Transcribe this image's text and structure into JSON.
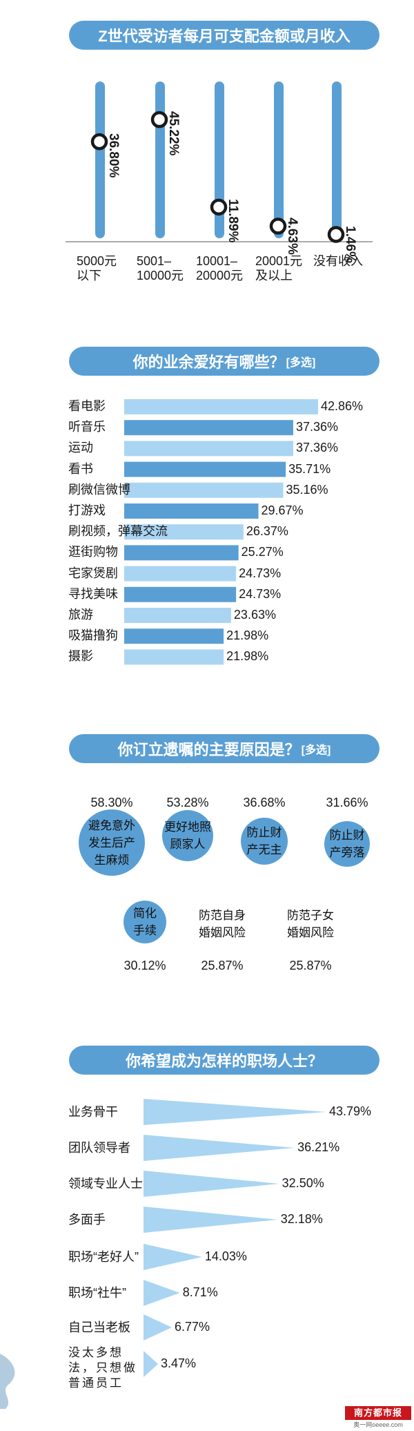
{
  "chart_data": [
    {
      "type": "bar",
      "title": "Z世代受访者每月可支配金额或月收入",
      "categories": [
        [
          "5000元",
          "以下"
        ],
        [
          "5001–",
          "10000元"
        ],
        [
          "10001–",
          "20000元"
        ],
        [
          "20001元",
          "及以上"
        ],
        [
          "没有收入"
        ]
      ],
      "values": [
        36.8,
        45.22,
        11.89,
        4.63,
        1.46
      ],
      "value_labels": [
        "36.80%",
        "45.22%",
        "11.89%",
        "4.63%",
        "1.46%"
      ],
      "ylim": [
        0,
        50
      ]
    },
    {
      "type": "bar",
      "title": "你的业余爱好有哪些？",
      "title_tag": "[多选]",
      "categories": [
        "看电影",
        "听音乐",
        "运动",
        "看书",
        "刷微信微博",
        "打游戏",
        "刷视频，弹幕交流",
        "逛街购物",
        "宅家煲剧",
        "寻找美味",
        "旅游",
        "吸猫撸狗",
        "摄影"
      ],
      "values": [
        42.86,
        37.36,
        37.36,
        35.71,
        35.16,
        29.67,
        26.37,
        25.27,
        24.73,
        24.73,
        23.63,
        21.98,
        21.98
      ],
      "value_labels": [
        "42.86%",
        "37.36%",
        "37.36%",
        "35.71%",
        "35.16%",
        "29.67%",
        "26.37%",
        "25.27%",
        "24.73%",
        "24.73%",
        "23.63%",
        "21.98%",
        "21.98%"
      ]
    },
    {
      "type": "bubble",
      "title": "你订立遗嘱的主要原因是？",
      "title_tag": "[多选]",
      "categories": [
        "避免意外\n发生后产\n生麻烦",
        "更好地照\n顾家人",
        "防止财\n产无主",
        "防止财\n产旁落",
        "简化\n手续",
        "防范自身\n婚姻风险",
        "防范子女\n婚姻风险"
      ],
      "values": [
        58.3,
        53.28,
        36.68,
        31.66,
        30.12,
        25.87,
        25.87
      ],
      "value_labels": [
        "58.30%",
        "53.28%",
        "36.68%",
        "31.66%",
        "30.12%",
        "25.87%",
        "25.87%"
      ]
    },
    {
      "type": "bar",
      "title": "你希望成为怎样的职场人士？",
      "categories": [
        "业务骨干",
        "团队领导者",
        "领域专业人士",
        "多面手",
        "职场“老好人”",
        "职场“社牛”",
        "自己当老板",
        "没太多想\n法，只想做\n普通员工"
      ],
      "values": [
        43.79,
        36.21,
        32.5,
        32.18,
        14.03,
        8.71,
        6.77,
        3.47
      ],
      "value_labels": [
        "43.79%",
        "36.21%",
        "32.50%",
        "32.18%",
        "14.03%",
        "8.71%",
        "6.77%",
        "3.47%"
      ]
    }
  ],
  "colors": {
    "dark_blue": "#5a9fd4",
    "light_blue": "#a9d5f3",
    "banner": "#5a9fd4",
    "marker": "#1a1a1a"
  },
  "logo": {
    "name": "南方都市报",
    "site": "奥一网oeeee.com"
  }
}
